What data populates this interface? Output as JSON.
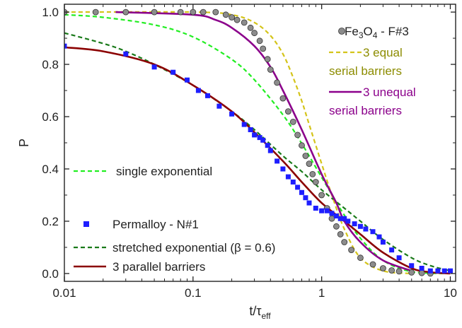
{
  "chart_data": {
    "type": "scatter",
    "xscale": "log",
    "xlim": [
      0.01,
      11
    ],
    "ylim": [
      -0.03,
      1.03
    ],
    "xlabel": {
      "main": "t/τ",
      "sub": "eff"
    },
    "ylabel": "P",
    "x_ticks": [
      {
        "value": 0.01,
        "label": "0.01"
      },
      {
        "value": 0.1,
        "label": "0.1"
      },
      {
        "value": 1,
        "label": "1"
      },
      {
        "value": 10,
        "label": "10"
      }
    ],
    "y_ticks": [
      {
        "value": 0.0,
        "label": "0.0"
      },
      {
        "value": 0.2,
        "label": "0.2"
      },
      {
        "value": 0.4,
        "label": "0.4"
      },
      {
        "value": 0.6,
        "label": "0.6"
      },
      {
        "value": 0.8,
        "label": "0.8"
      },
      {
        "value": 1.0,
        "label": "1.0"
      }
    ],
    "grid": false,
    "legend": [
      {
        "series": "fe3o4",
        "parts": [
          [
            "Fe",
            "n"
          ],
          [
            "3",
            "sub"
          ],
          [
            "O",
            "n"
          ],
          [
            "4",
            "sub"
          ],
          [
            " - F#3",
            "n"
          ]
        ],
        "color": "#222222"
      },
      {
        "series": "equal",
        "lines": [
          "3 equal",
          "serial barriers"
        ],
        "color": "#8c8c00"
      },
      {
        "series": "unequal",
        "lines": [
          "3 unequal",
          "serial barriers"
        ],
        "color": "#8b008b"
      },
      {
        "series": "single",
        "lines": [
          "single exponential"
        ],
        "color": "#222222"
      },
      {
        "series": "permalloy",
        "lines": [
          "Permalloy - N#1"
        ],
        "color": "#222222"
      },
      {
        "series": "stretched",
        "lines": [
          "stretched exponential (β = 0.6)"
        ],
        "color": "#222222"
      },
      {
        "series": "parallel",
        "lines": [
          "3 parallel barriers"
        ],
        "color": "#222222"
      }
    ],
    "series": [
      {
        "id": "single",
        "type": "line",
        "style": "dashed",
        "color": "#22ee22",
        "x": [
          0.01,
          0.02,
          0.05,
          0.1,
          0.2,
          0.3,
          0.5,
          0.7,
          1,
          1.5,
          2,
          3,
          5,
          10
        ],
        "y": [
          0.99,
          0.98,
          0.951,
          0.905,
          0.819,
          0.741,
          0.607,
          0.497,
          0.368,
          0.223,
          0.135,
          0.05,
          0.007,
          0.0
        ]
      },
      {
        "id": "stretched",
        "type": "line",
        "style": "dashed",
        "color": "#1a7a1a",
        "x": [
          0.01,
          0.02,
          0.03,
          0.05,
          0.1,
          0.2,
          0.3,
          0.5,
          0.7,
          1,
          1.5,
          2,
          3,
          5,
          7,
          10
        ],
        "y": [
          0.92,
          0.88,
          0.85,
          0.8,
          0.72,
          0.62,
          0.55,
          0.45,
          0.39,
          0.32,
          0.25,
          0.2,
          0.13,
          0.06,
          0.03,
          0.01
        ]
      },
      {
        "id": "parallel",
        "type": "line",
        "style": "solid",
        "color": "#8b0000",
        "x": [
          0.01,
          0.02,
          0.05,
          0.1,
          0.2,
          0.3,
          0.5,
          0.7,
          1,
          1.5,
          2,
          3,
          5,
          7,
          10
        ],
        "y": [
          0.865,
          0.85,
          0.8,
          0.72,
          0.62,
          0.54,
          0.43,
          0.35,
          0.27,
          0.2,
          0.15,
          0.08,
          0.02,
          0.005,
          0.0
        ]
      },
      {
        "id": "equal",
        "type": "line",
        "style": "dashed",
        "color": "#d4c41a",
        "x": [
          0.01,
          0.1,
          0.2,
          0.3,
          0.4,
          0.5,
          0.6,
          0.7,
          0.8,
          1,
          1.2,
          1.5,
          2,
          3,
          5
        ],
        "y": [
          1.0,
          1.0,
          0.99,
          0.96,
          0.91,
          0.84,
          0.75,
          0.66,
          0.57,
          0.42,
          0.3,
          0.17,
          0.06,
          0.01,
          0.0
        ]
      },
      {
        "id": "unequal",
        "type": "line",
        "style": "solid",
        "color": "#8b008b",
        "x": [
          0.025,
          0.1,
          0.15,
          0.2,
          0.3,
          0.4,
          0.5,
          0.7,
          1,
          1.3,
          1.5,
          2,
          3,
          5
        ],
        "y": [
          1.0,
          0.99,
          0.97,
          0.94,
          0.87,
          0.79,
          0.7,
          0.55,
          0.38,
          0.27,
          0.2,
          0.12,
          0.05,
          0.01
        ]
      },
      {
        "id": "fe3o4",
        "type": "scatter",
        "marker": "circle",
        "color": "#8c8c8c",
        "x": [
          0.01,
          0.0175,
          0.03,
          0.05,
          0.08,
          0.1,
          0.12,
          0.15,
          0.18,
          0.2,
          0.22,
          0.25,
          0.28,
          0.3,
          0.33,
          0.35,
          0.38,
          0.4,
          0.45,
          0.5,
          0.55,
          0.6,
          0.65,
          0.7,
          0.75,
          0.8,
          0.85,
          0.9,
          1.0,
          1.1,
          1.2,
          1.3,
          1.4,
          1.5,
          1.7,
          2.0,
          2.5,
          3.0,
          3.5,
          4.0,
          5.0,
          6.0,
          7.0
        ],
        "y": [
          1.0,
          1.0,
          1.0,
          1.0,
          1.0,
          1.0,
          1.0,
          1.0,
          0.99,
          0.98,
          0.97,
          0.96,
          0.94,
          0.92,
          0.89,
          0.86,
          0.82,
          0.78,
          0.73,
          0.67,
          0.62,
          0.58,
          0.53,
          0.49,
          0.45,
          0.42,
          0.38,
          0.35,
          0.3,
          0.25,
          0.21,
          0.18,
          0.15,
          0.12,
          0.09,
          0.06,
          0.035,
          0.02,
          0.012,
          0.008,
          0.004,
          0.002,
          0.0
        ]
      },
      {
        "id": "permalloy",
        "type": "scatter",
        "marker": "square",
        "color": "#1e1eff",
        "x": [
          0.01,
          0.03,
          0.05,
          0.07,
          0.09,
          0.11,
          0.13,
          0.16,
          0.2,
          0.25,
          0.28,
          0.3,
          0.33,
          0.35,
          0.38,
          0.4,
          0.45,
          0.5,
          0.55,
          0.6,
          0.65,
          0.7,
          0.75,
          0.8,
          0.9,
          1.0,
          1.1,
          1.2,
          1.3,
          1.4,
          1.5,
          1.6,
          1.8,
          2.0,
          2.2,
          2.5,
          2.8,
          3.0,
          3.5,
          4.0,
          5.0,
          6.0,
          7.0,
          8.0,
          9.0,
          10.0
        ],
        "y": [
          0.87,
          0.84,
          0.79,
          0.77,
          0.74,
          0.7,
          0.68,
          0.64,
          0.61,
          0.57,
          0.55,
          0.53,
          0.52,
          0.51,
          0.49,
          0.47,
          0.43,
          0.4,
          0.37,
          0.35,
          0.33,
          0.31,
          0.29,
          0.27,
          0.25,
          0.24,
          0.24,
          0.23,
          0.22,
          0.21,
          0.21,
          0.2,
          0.19,
          0.18,
          0.17,
          0.16,
          0.14,
          0.12,
          0.09,
          0.06,
          0.03,
          0.02,
          0.01,
          0.01,
          0.01,
          0.01
        ]
      }
    ]
  }
}
